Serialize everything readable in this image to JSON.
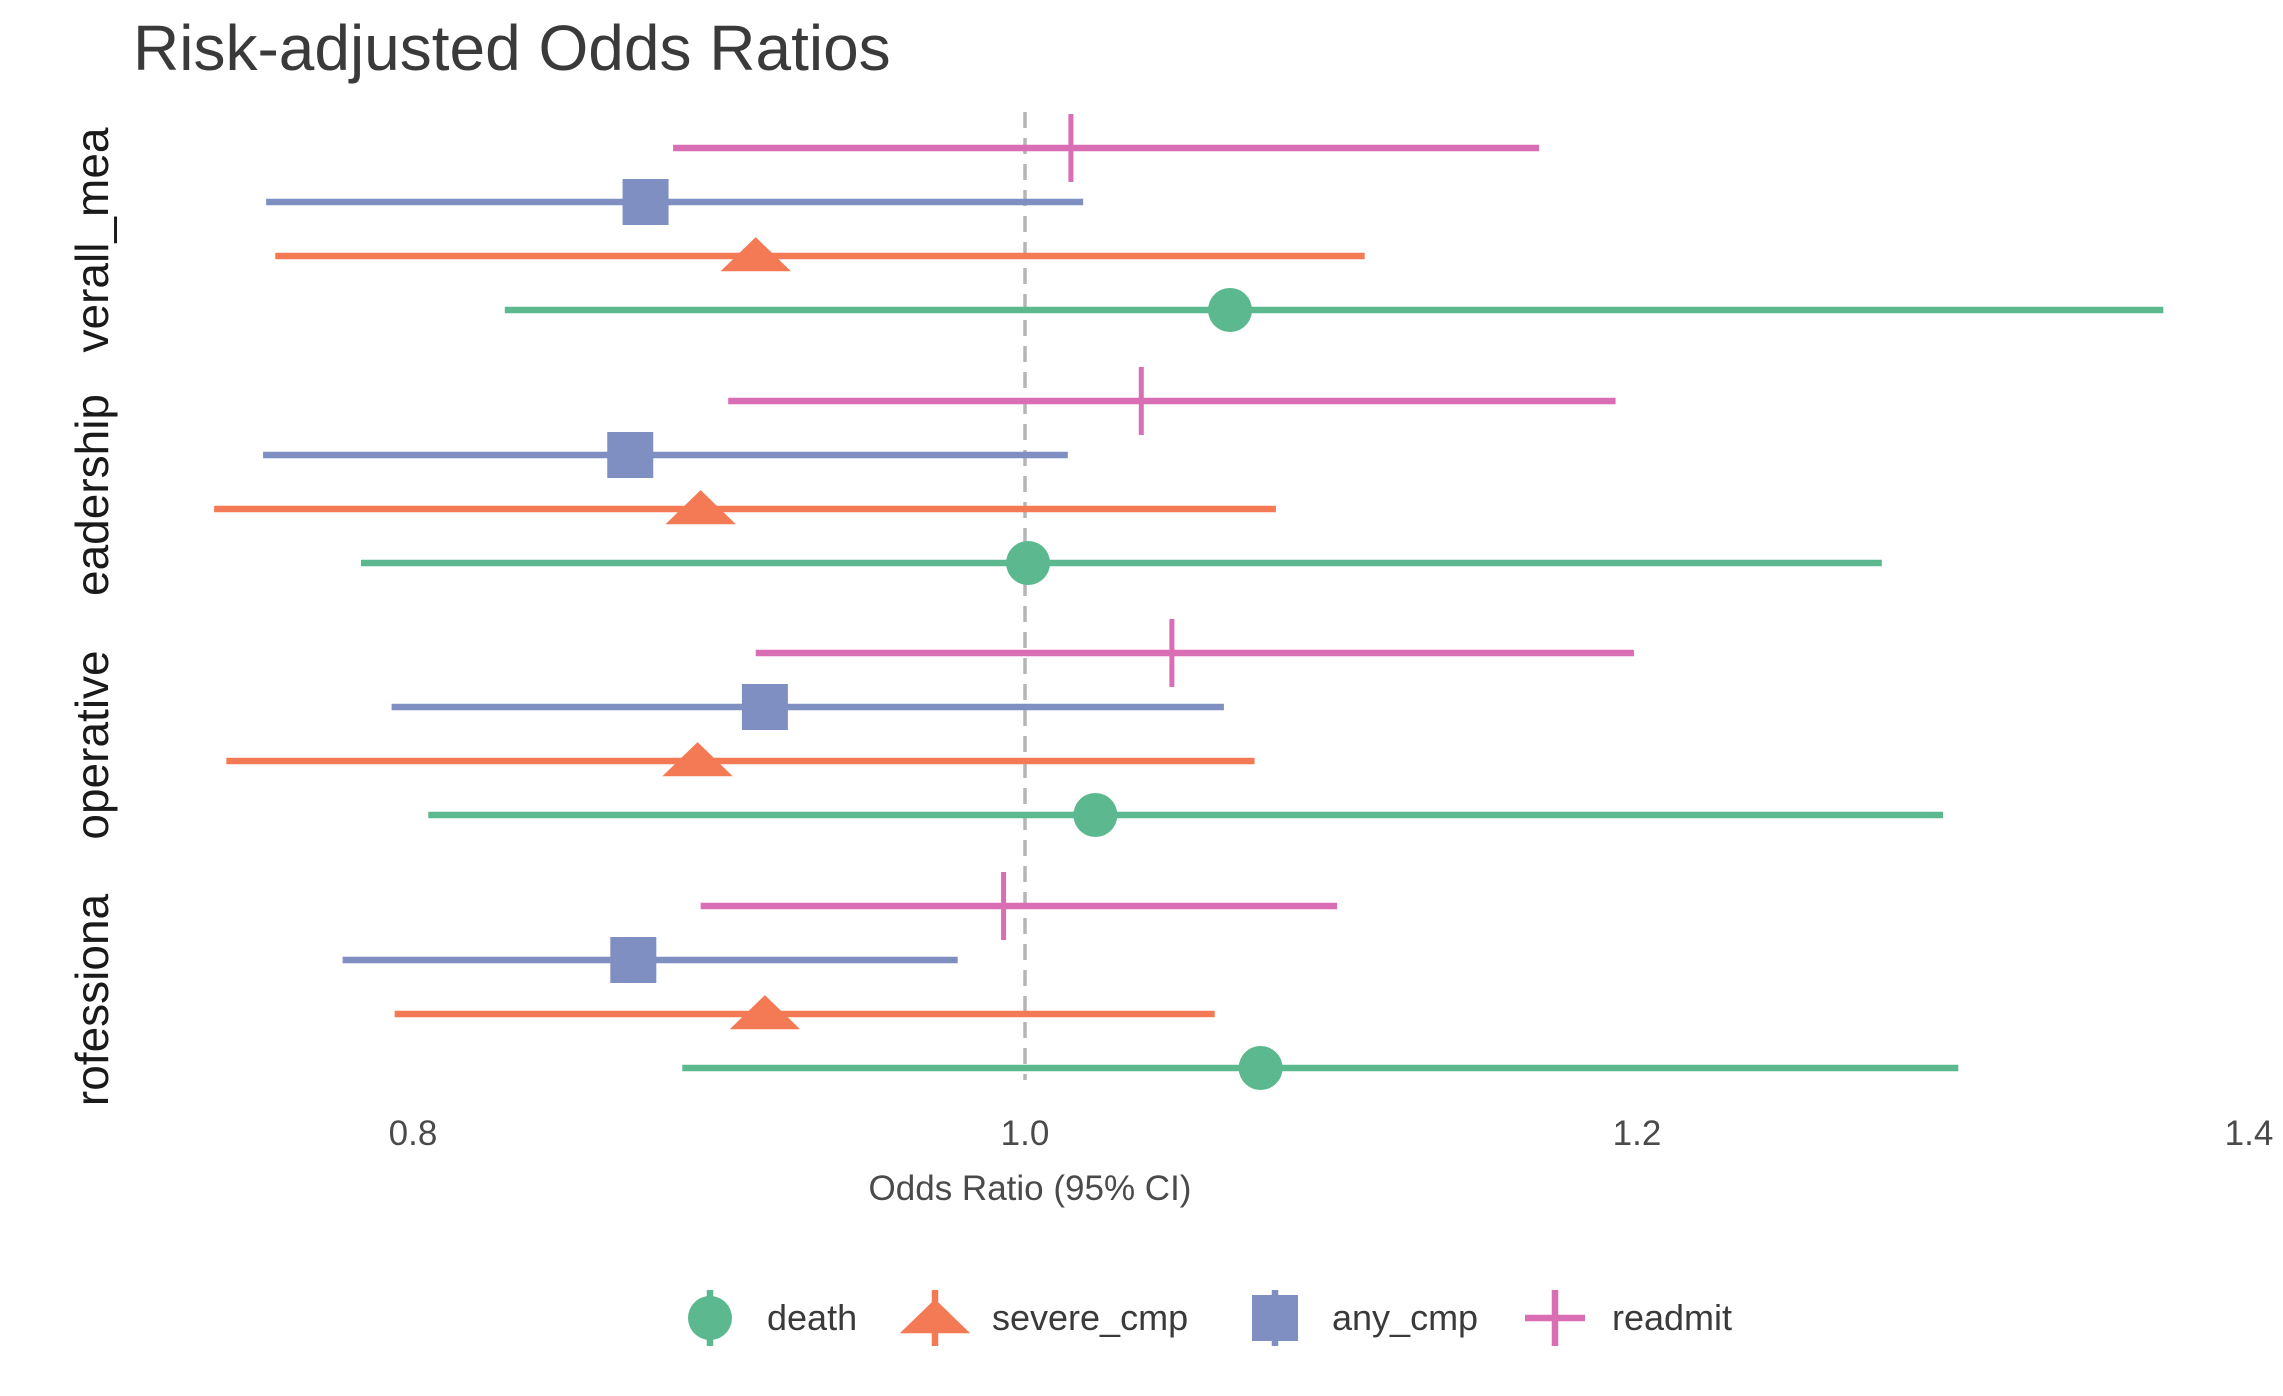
{
  "chart_data": {
    "type": "forest",
    "title": "Risk-adjusted Odds Ratios",
    "xlabel": "Odds Ratio (95% CI)",
    "ylabel": "",
    "xlim": [
      0.8,
      1.4
    ],
    "xticks": [
      {
        "value": 0.8,
        "label": "0.8"
      },
      {
        "value": 1.0,
        "label": "1.0"
      },
      {
        "value": 1.2,
        "label": "1.2"
      },
      {
        "value": 1.4,
        "label": "1.4"
      }
    ],
    "reference_line": 1.0,
    "grid": false,
    "legend_position": "bottom",
    "categories": [
      "profession",
      "operative",
      "leadership",
      "overall_mean"
    ],
    "category_labels_visible": [
      "rofessiona",
      "operative",
      "eadership",
      "verall_mea"
    ],
    "series": [
      {
        "name": "death",
        "color": "#5BB88F",
        "marker": "circle",
        "points": [
          {
            "category": "profession",
            "estimate": 1.077,
            "lower": 0.888,
            "upper": 1.305
          },
          {
            "category": "operative",
            "estimate": 1.023,
            "lower": 0.805,
            "upper": 1.3
          },
          {
            "category": "leadership",
            "estimate": 1.001,
            "lower": 0.783,
            "upper": 1.28
          },
          {
            "category": "overall_mean",
            "estimate": 1.067,
            "lower": 0.83,
            "upper": 1.372
          }
        ]
      },
      {
        "name": "severe_cmp",
        "color": "#F37A55",
        "marker": "triangle",
        "points": [
          {
            "category": "profession",
            "estimate": 0.915,
            "lower": 0.794,
            "upper": 1.062
          },
          {
            "category": "operative",
            "estimate": 0.893,
            "lower": 0.739,
            "upper": 1.075
          },
          {
            "category": "leadership",
            "estimate": 0.894,
            "lower": 0.735,
            "upper": 1.082
          },
          {
            "category": "overall_mean",
            "estimate": 0.912,
            "lower": 0.755,
            "upper": 1.111
          }
        ]
      },
      {
        "name": "any_cmp",
        "color": "#7F8FC2",
        "marker": "square",
        "points": [
          {
            "category": "profession",
            "estimate": 0.872,
            "lower": 0.777,
            "upper": 0.978
          },
          {
            "category": "operative",
            "estimate": 0.915,
            "lower": 0.793,
            "upper": 1.065
          },
          {
            "category": "leadership",
            "estimate": 0.871,
            "lower": 0.751,
            "upper": 1.014
          },
          {
            "category": "overall_mean",
            "estimate": 0.876,
            "lower": 0.752,
            "upper": 1.019
          }
        ]
      },
      {
        "name": "readmit",
        "color": "#D96EB5",
        "marker": "cross",
        "points": [
          {
            "category": "profession",
            "estimate": 0.993,
            "lower": 0.894,
            "upper": 1.102
          },
          {
            "category": "operative",
            "estimate": 1.048,
            "lower": 0.912,
            "upper": 1.199
          },
          {
            "category": "leadership",
            "estimate": 1.038,
            "lower": 0.903,
            "upper": 1.193
          },
          {
            "category": "overall_mean",
            "estimate": 1.015,
            "lower": 0.885,
            "upper": 1.168
          }
        ]
      }
    ]
  }
}
